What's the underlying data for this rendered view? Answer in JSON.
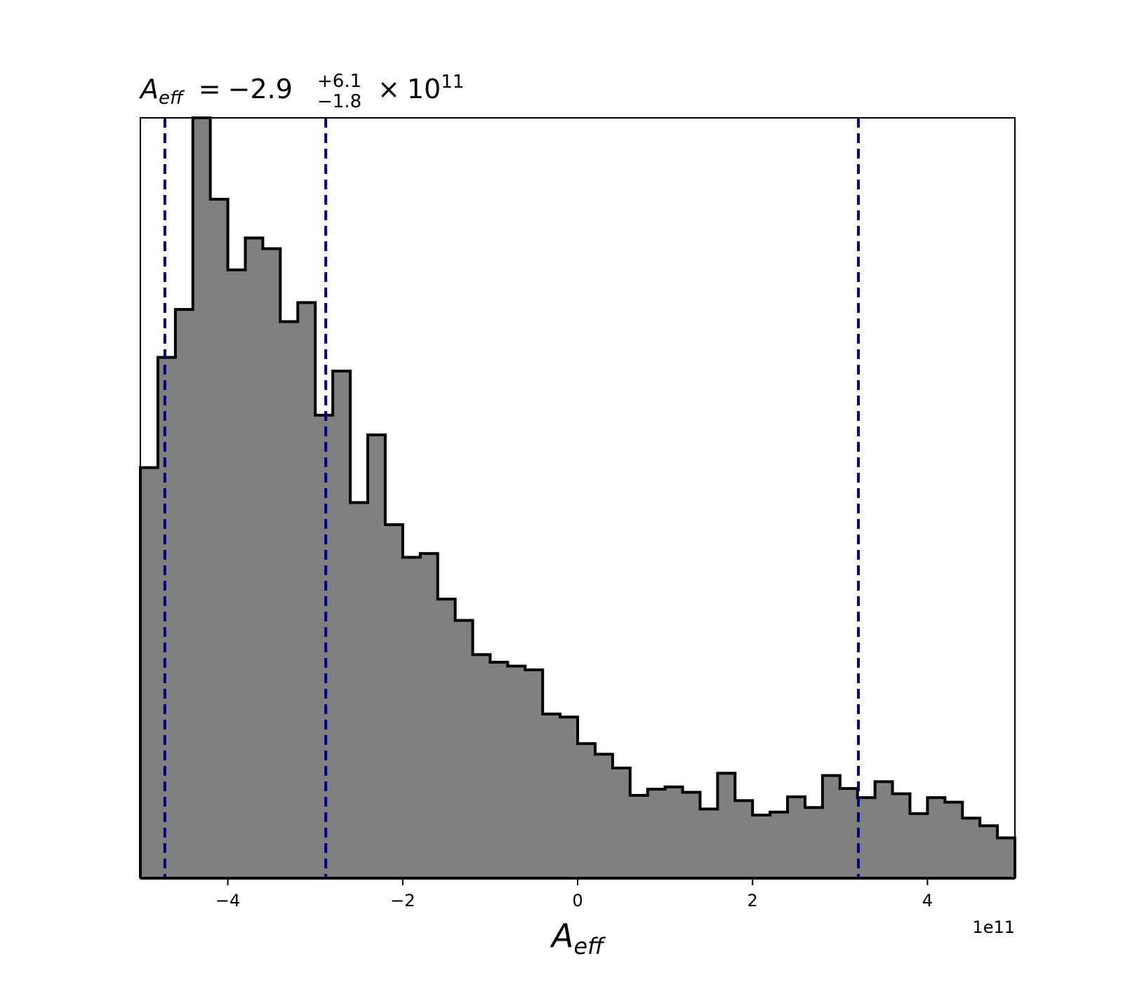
{
  "chart_data": {
    "type": "histogram",
    "title": {
      "lhs_base": "A",
      "lhs_subscript": "eff",
      "equals": "=",
      "median": "−2.9",
      "upper_err": "+6.1",
      "lower_err": "−1.8",
      "times": "×",
      "exponent_base": "10",
      "exponent": "11"
    },
    "xlabel": {
      "base": "A",
      "subscript": "eff"
    },
    "x_offset_label": "1e11",
    "xlim": [
      -5.0,
      5.0
    ],
    "ylim": [
      0,
      1.0
    ],
    "x_ticks": [
      {
        "value": -4,
        "label": "−4"
      },
      {
        "value": -2,
        "label": "−2"
      },
      {
        "value": 0,
        "label": "0"
      },
      {
        "value": 2,
        "label": "2"
      },
      {
        "value": 4,
        "label": "4"
      }
    ],
    "bin_edges": [
      -5.0,
      -4.8,
      -4.6,
      -4.4,
      -4.2,
      -4.0,
      -3.8,
      -3.6,
      -3.4,
      -3.2,
      -3.0,
      -2.8,
      -2.6,
      -2.4,
      -2.2,
      -2.0,
      -1.8,
      -1.6,
      -1.4,
      -1.2,
      -1.0,
      -0.8,
      -0.6,
      -0.4,
      -0.2,
      0.0,
      0.2,
      0.4,
      0.6,
      0.8,
      1.0,
      1.2,
      1.4,
      1.6,
      1.8,
      2.0,
      2.2,
      2.4,
      2.6,
      2.8,
      3.0,
      3.2,
      3.4,
      3.6,
      3.8,
      4.0,
      4.2,
      4.4,
      4.6,
      4.8,
      5.0
    ],
    "counts": [
      0.54,
      0.685,
      0.748,
      1.0,
      0.893,
      0.8,
      0.842,
      0.828,
      0.732,
      0.757,
      0.609,
      0.667,
      0.494,
      0.583,
      0.465,
      0.422,
      0.427,
      0.367,
      0.339,
      0.294,
      0.284,
      0.279,
      0.274,
      0.216,
      0.212,
      0.177,
      0.163,
      0.145,
      0.109,
      0.117,
      0.12,
      0.113,
      0.091,
      0.138,
      0.102,
      0.083,
      0.087,
      0.107,
      0.093,
      0.135,
      0.118,
      0.106,
      0.127,
      0.111,
      0.085,
      0.106,
      0.1,
      0.079,
      0.069,
      0.053
    ],
    "fill_color": "#808080",
    "edge_color": "#000000",
    "quantile_lines": [
      -4.72,
      -2.88,
      3.21
    ],
    "quantile_color": "#000080",
    "grid": false
  }
}
